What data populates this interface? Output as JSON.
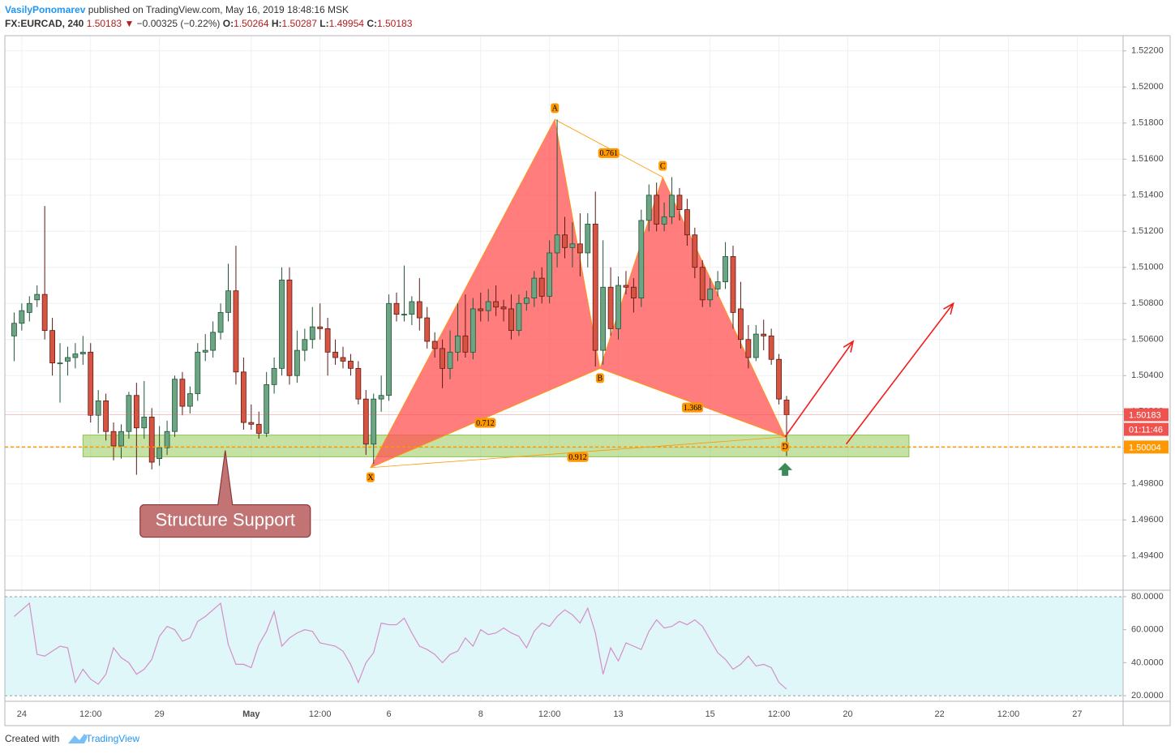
{
  "header": {
    "author": "VasilyPonomarev",
    "published": "published on TradingView.com, May 16, 2019 18:48:16 MSK",
    "symbol": "FX:EURCAD, 240",
    "last": "1.50183",
    "change_arrow": "▼",
    "change": "−0.00325 (−0.22%)",
    "ohlc": [
      {
        "key": "O:",
        "value": "1.50264"
      },
      {
        "key": "H:",
        "value": "1.50287"
      },
      {
        "key": "L:",
        "value": "1.49954"
      },
      {
        "key": "C:",
        "value": "1.50183"
      }
    ]
  },
  "chart_data": {
    "type": "candlestick",
    "up_color": "#6ba583",
    "down_color": "#d75442",
    "candles": [
      [
        1.5062,
        1.5075,
        1.5048,
        1.5069
      ],
      [
        1.5069,
        1.508,
        1.5065,
        1.5076
      ],
      [
        1.5075,
        1.5084,
        1.507,
        1.508
      ],
      [
        1.5082,
        1.509,
        1.5078,
        1.5085
      ],
      [
        1.5085,
        1.5134,
        1.506,
        1.5065
      ],
      [
        1.5065,
        1.5072,
        1.504,
        1.5047
      ],
      [
        1.5047,
        1.5058,
        1.5025,
        1.5047
      ],
      [
        1.5048,
        1.5056,
        1.504,
        1.505
      ],
      [
        1.505,
        1.5058,
        1.5044,
        1.5052
      ],
      [
        1.5052,
        1.5062,
        1.5046,
        1.5053
      ],
      [
        1.5053,
        1.5058,
        1.5014,
        1.5018
      ],
      [
        1.5018,
        1.5032,
        1.5008,
        1.5026
      ],
      [
        1.5026,
        1.503,
        1.5004,
        1.5009
      ],
      [
        1.5009,
        1.5014,
        1.4993,
        1.5001
      ],
      [
        1.5001,
        1.5013,
        1.4994,
        1.5009
      ],
      [
        1.5009,
        1.5031,
        1.5005,
        1.5029
      ],
      [
        1.5029,
        1.5036,
        1.4985,
        1.5011
      ],
      [
        1.5011,
        1.5037,
        1.5005,
        1.5017
      ],
      [
        1.5017,
        1.5022,
        1.4988,
        1.4992
      ],
      [
        1.4994,
        1.5012,
        1.499,
        1.5
      ],
      [
        1.5,
        1.5015,
        1.4996,
        1.5009
      ],
      [
        1.5009,
        1.504,
        1.5006,
        1.5038
      ],
      [
        1.5038,
        1.5042,
        1.5018,
        1.5023
      ],
      [
        1.5023,
        1.5034,
        1.5019,
        1.503
      ],
      [
        1.503,
        1.5058,
        1.5026,
        1.5053
      ],
      [
        1.5053,
        1.5063,
        1.5048,
        1.5054
      ],
      [
        1.5054,
        1.507,
        1.505,
        1.5064
      ],
      [
        1.5064,
        1.508,
        1.506,
        1.5075
      ],
      [
        1.5075,
        1.5102,
        1.507,
        1.5087
      ],
      [
        1.5087,
        1.5112,
        1.5035,
        1.5042
      ],
      [
        1.5042,
        1.505,
        1.501,
        1.5014
      ],
      [
        1.5014,
        1.5024,
        1.501,
        1.5013
      ],
      [
        1.5013,
        1.502,
        1.5005,
        1.5008
      ],
      [
        1.5008,
        1.5042,
        1.5006,
        1.5035
      ],
      [
        1.5035,
        1.505,
        1.503,
        1.5044
      ],
      [
        1.5044,
        1.51,
        1.504,
        1.5093
      ],
      [
        1.5093,
        1.51,
        1.5035,
        1.504
      ],
      [
        1.504,
        1.5065,
        1.5036,
        1.5054
      ],
      [
        1.5054,
        1.5066,
        1.5048,
        1.506
      ],
      [
        1.506,
        1.5078,
        1.5055,
        1.5067
      ],
      [
        1.5067,
        1.508,
        1.506,
        1.5066
      ],
      [
        1.5066,
        1.5072,
        1.504,
        1.5053
      ],
      [
        1.5053,
        1.506,
        1.5046,
        1.505
      ],
      [
        1.505,
        1.5056,
        1.5044,
        1.5048
      ],
      [
        1.5048,
        1.5052,
        1.504,
        1.5044
      ],
      [
        1.5044,
        1.5048,
        1.5024,
        1.5027
      ],
      [
        1.5027,
        1.5032,
        1.4996,
        1.5002
      ],
      [
        1.5002,
        1.503,
        1.4991,
        1.5027
      ],
      [
        1.5027,
        1.504,
        1.502,
        1.5029
      ],
      [
        1.5029,
        1.5085,
        1.5026,
        1.508
      ],
      [
        1.508,
        1.5086,
        1.507,
        1.5074
      ],
      [
        1.5074,
        1.5101,
        1.507,
        1.5074
      ],
      [
        1.5074,
        1.5084,
        1.5068,
        1.5081
      ],
      [
        1.5081,
        1.5094,
        1.5065,
        1.5072
      ],
      [
        1.5072,
        1.5078,
        1.5055,
        1.5059
      ],
      [
        1.5059,
        1.5064,
        1.505,
        1.5055
      ],
      [
        1.5055,
        1.506,
        1.5033,
        1.5044
      ],
      [
        1.5044,
        1.5065,
        1.5038,
        1.5053
      ],
      [
        1.5053,
        1.508,
        1.5048,
        1.5062
      ],
      [
        1.5062,
        1.5085,
        1.505,
        1.5053
      ],
      [
        1.5053,
        1.5083,
        1.5049,
        1.5077
      ],
      [
        1.5077,
        1.5086,
        1.507,
        1.5076
      ],
      [
        1.5076,
        1.5088,
        1.507,
        1.5081
      ],
      [
        1.5081,
        1.509,
        1.5073,
        1.5078
      ],
      [
        1.5078,
        1.5082,
        1.507,
        1.5077
      ],
      [
        1.5077,
        1.5085,
        1.506,
        1.5065
      ],
      [
        1.5065,
        1.5085,
        1.5062,
        1.508
      ],
      [
        1.508,
        1.5087,
        1.5076,
        1.5083
      ],
      [
        1.5083,
        1.5098,
        1.5078,
        1.5094
      ],
      [
        1.5094,
        1.51,
        1.508,
        1.5084
      ],
      [
        1.5084,
        1.5115,
        1.508,
        1.5108
      ],
      [
        1.5108,
        1.5182,
        1.51,
        1.5118
      ],
      [
        1.5118,
        1.5128,
        1.5105,
        1.5111
      ],
      [
        1.5111,
        1.5125,
        1.51,
        1.5113
      ],
      [
        1.5113,
        1.513,
        1.5095,
        1.5108
      ],
      [
        1.5108,
        1.513,
        1.51,
        1.5124
      ],
      [
        1.5124,
        1.5142,
        1.5045,
        1.5054
      ],
      [
        1.5054,
        1.5115,
        1.5046,
        1.5089
      ],
      [
        1.5089,
        1.51,
        1.5062,
        1.5066
      ],
      [
        1.5066,
        1.5095,
        1.506,
        1.509
      ],
      [
        1.509,
        1.5098,
        1.5085,
        1.5089
      ],
      [
        1.5089,
        1.5094,
        1.5075,
        1.5083
      ],
      [
        1.5083,
        1.5132,
        1.5078,
        1.5126
      ],
      [
        1.5126,
        1.5146,
        1.512,
        1.514
      ],
      [
        1.514,
        1.5147,
        1.512,
        1.5124
      ],
      [
        1.5124,
        1.5136,
        1.512,
        1.5128
      ],
      [
        1.5128,
        1.515,
        1.5124,
        1.514
      ],
      [
        1.514,
        1.5144,
        1.5126,
        1.5132
      ],
      [
        1.5132,
        1.5138,
        1.5112,
        1.5118
      ],
      [
        1.5118,
        1.5122,
        1.5094,
        1.51
      ],
      [
        1.51,
        1.5104,
        1.5078,
        1.5082
      ],
      [
        1.5082,
        1.5094,
        1.5078,
        1.5088
      ],
      [
        1.5088,
        1.5098,
        1.5084,
        1.5092
      ],
      [
        1.5092,
        1.5114,
        1.5088,
        1.5106
      ],
      [
        1.5106,
        1.5112,
        1.5066,
        1.5075
      ],
      [
        1.5077,
        1.5092,
        1.5055,
        1.506
      ],
      [
        1.506,
        1.5068,
        1.5044,
        1.505
      ],
      [
        1.505,
        1.5068,
        1.5048,
        1.5063
      ],
      [
        1.5063,
        1.5071,
        1.5054,
        1.5062
      ],
      [
        1.5062,
        1.5066,
        1.5046,
        1.5049
      ],
      [
        1.5049,
        1.5052,
        1.5024,
        1.5027
      ],
      [
        1.50264,
        1.50287,
        1.49954,
        1.50183
      ]
    ],
    "xlim": [
      -1,
      145
    ],
    "xticks": [
      {
        "value": 1,
        "label": "24"
      },
      {
        "value": 10,
        "label": "12:00"
      },
      {
        "value": 19,
        "label": "29"
      },
      {
        "value": 31,
        "label": "May"
      },
      {
        "value": 40,
        "label": "12:00"
      },
      {
        "value": 49,
        "label": "6"
      },
      {
        "value": 61,
        "label": "8"
      },
      {
        "value": 70,
        "label": "12:00"
      },
      {
        "value": 79,
        "label": "13"
      },
      {
        "value": 91,
        "label": "15"
      },
      {
        "value": 100,
        "label": "12:00"
      },
      {
        "value": 109,
        "label": "20"
      },
      {
        "value": 121,
        "label": "22"
      },
      {
        "value": 130,
        "label": "12:00"
      },
      {
        "value": 139,
        "label": "27"
      }
    ],
    "ylim": [
      1.4921,
      1.5228
    ],
    "yticks": [
      {
        "value": 1.494,
        "label": "1.49400"
      },
      {
        "value": 1.496,
        "label": "1.49600"
      },
      {
        "value": 1.498,
        "label": "1.49800"
      },
      {
        "value": 1.5,
        "label": "1.50000"
      },
      {
        "value": 1.502,
        "label": "1.50200"
      },
      {
        "value": 1.504,
        "label": "1.50400"
      },
      {
        "value": 1.506,
        "label": "1.50600"
      },
      {
        "value": 1.508,
        "label": "1.50800"
      },
      {
        "value": 1.51,
        "label": "1.51000"
      },
      {
        "value": 1.512,
        "label": "1.51200"
      },
      {
        "value": 1.514,
        "label": "1.51400"
      },
      {
        "value": 1.516,
        "label": "1.51600"
      },
      {
        "value": 1.518,
        "label": "1.51800"
      },
      {
        "value": 1.52,
        "label": "1.52000"
      },
      {
        "value": 1.522,
        "label": "1.52200"
      }
    ],
    "grid": true,
    "last_price_label": "1.50183",
    "countdown": "01:11:46",
    "support_line": {
      "value": 1.50004,
      "label": "1.50004",
      "color": "#ff9800"
    },
    "zone": {
      "x": [
        9,
        117
      ],
      "y": [
        1.4995,
        1.5007
      ],
      "color": "#8bc34a"
    },
    "pattern": {
      "color": "#ff5252",
      "line_color": "#ff9800",
      "points": [
        {
          "label": "X",
          "x": 46.6,
          "y": 1.4989
        },
        {
          "label": "A",
          "x": 70.7,
          "y": 1.5182
        },
        {
          "label": "B",
          "x": 76.6,
          "y": 1.5044
        },
        {
          "label": "C",
          "x": 84.8,
          "y": 1.515
        },
        {
          "label": "D",
          "x": 100.8,
          "y": 1.5006
        }
      ],
      "ratios": {
        "XB": 0.712,
        "AC": 0.761,
        "BD": 1.368,
        "XD": 0.912
      }
    },
    "arrows": [
      {
        "x": [
          100.8,
          109.7
        ],
        "y": [
          1.5006,
          1.5059
        ]
      },
      {
        "x": [
          108.8,
          122.8
        ],
        "y": [
          1.5002,
          1.508
        ]
      }
    ],
    "annotation": {
      "text": "Structure Support",
      "x": 27.6,
      "y": 1.49985
    },
    "indicator": {
      "type": "line",
      "color": "#d48ec8",
      "band_color": "#e0f7fa",
      "ylim": [
        16.6,
        83.9
      ],
      "yticks": [
        {
          "value": 20,
          "label": "20.0000"
        },
        {
          "value": 40,
          "label": "40.0000"
        },
        {
          "value": 60,
          "label": "60.0000"
        },
        {
          "value": 80,
          "label": "80.0000"
        }
      ],
      "values": [
        68,
        72,
        76,
        45,
        44,
        47,
        50,
        49,
        28,
        36,
        30,
        27,
        33,
        49,
        43,
        40,
        33,
        36,
        42,
        56,
        62,
        60,
        53,
        55,
        65,
        68,
        72,
        76,
        51,
        39,
        39,
        37,
        51,
        59,
        71,
        50,
        55,
        58,
        60,
        59,
        52,
        51,
        50,
        47,
        39,
        28,
        40,
        46,
        64,
        63,
        63,
        67,
        58,
        50,
        48,
        45,
        40,
        45,
        47,
        55,
        50,
        60,
        57,
        58,
        61,
        58,
        56,
        49,
        59,
        64,
        62,
        68,
        72,
        69,
        64,
        73,
        58,
        33,
        49,
        41,
        52,
        50,
        48,
        59,
        66,
        61,
        62,
        65,
        63,
        66,
        62,
        54,
        46,
        42,
        36,
        39,
        44,
        38,
        39,
        37,
        28,
        24
      ]
    }
  },
  "footer": {
    "created": "Created with",
    "brand": "TradingView"
  }
}
